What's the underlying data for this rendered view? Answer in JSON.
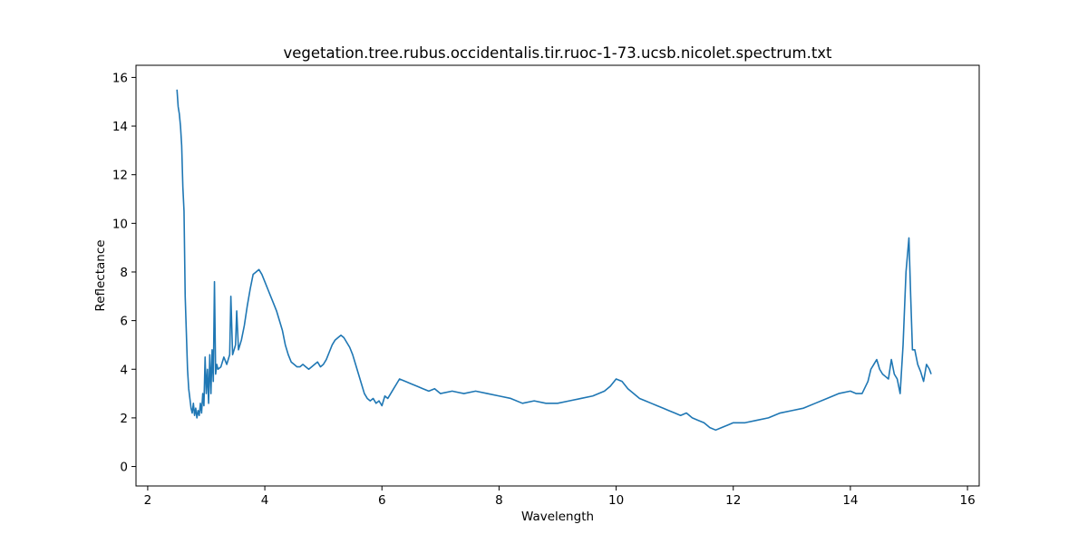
{
  "chart_data": {
    "type": "line",
    "title": "vegetation.tree.rubus.occidentalis.tir.ruoc-1-73.ucsb.nicolet.spectrum.txt",
    "xlabel": "Wavelength",
    "ylabel": "Reflectance",
    "xlim": [
      1.8,
      16.2
    ],
    "ylim": [
      -0.8,
      16.5
    ],
    "xticks": [
      2,
      4,
      6,
      8,
      10,
      12,
      14,
      16
    ],
    "yticks": [
      0,
      2,
      4,
      6,
      8,
      10,
      12,
      14,
      16
    ],
    "grid": false,
    "line_color": "#1f77b4",
    "series": [
      {
        "x": [
          2.5,
          2.52,
          2.54,
          2.56,
          2.58,
          2.6,
          2.62,
          2.64,
          2.66,
          2.68,
          2.7,
          2.72,
          2.74,
          2.76,
          2.78,
          2.8,
          2.82,
          2.84,
          2.86,
          2.88,
          2.9,
          2.92,
          2.94,
          2.96,
          2.98,
          3.0,
          3.02,
          3.04,
          3.06,
          3.08,
          3.1,
          3.12,
          3.14,
          3.16,
          3.18,
          3.2,
          3.25,
          3.3,
          3.35,
          3.4,
          3.42,
          3.45,
          3.5,
          3.52,
          3.55,
          3.6,
          3.65,
          3.7,
          3.75,
          3.8,
          3.85,
          3.9,
          3.95,
          4.0,
          4.05,
          4.1,
          4.15,
          4.2,
          4.25,
          4.3,
          4.35,
          4.4,
          4.45,
          4.5,
          4.55,
          4.6,
          4.65,
          4.7,
          4.75,
          4.8,
          4.85,
          4.9,
          4.95,
          5.0,
          5.05,
          5.1,
          5.15,
          5.2,
          5.25,
          5.3,
          5.35,
          5.4,
          5.45,
          5.5,
          5.55,
          5.6,
          5.65,
          5.7,
          5.75,
          5.8,
          5.85,
          5.9,
          5.95,
          6.0,
          6.05,
          6.1,
          6.15,
          6.2,
          6.25,
          6.3,
          6.4,
          6.5,
          6.6,
          6.7,
          6.8,
          6.9,
          7.0,
          7.2,
          7.4,
          7.6,
          7.8,
          8.0,
          8.2,
          8.4,
          8.6,
          8.8,
          9.0,
          9.2,
          9.4,
          9.6,
          9.8,
          9.9,
          10.0,
          10.1,
          10.2,
          10.3,
          10.4,
          10.5,
          10.6,
          10.7,
          10.8,
          10.9,
          11.0,
          11.1,
          11.2,
          11.3,
          11.4,
          11.5,
          11.6,
          11.7,
          11.8,
          11.9,
          12.0,
          12.2,
          12.4,
          12.6,
          12.8,
          13.0,
          13.2,
          13.4,
          13.6,
          13.8,
          14.0,
          14.1,
          14.2,
          14.3,
          14.35,
          14.4,
          14.45,
          14.5,
          14.55,
          14.6,
          14.65,
          14.7,
          14.75,
          14.8,
          14.85,
          14.9,
          14.95,
          15.0,
          15.03,
          15.06,
          15.1,
          15.15,
          15.2,
          15.25,
          15.3,
          15.35,
          15.38
        ],
        "y": [
          15.5,
          14.8,
          14.5,
          14.0,
          13.2,
          11.5,
          10.5,
          7.0,
          5.5,
          4.0,
          3.2,
          2.8,
          2.4,
          2.2,
          2.6,
          2.1,
          2.4,
          2.0,
          2.3,
          2.1,
          2.6,
          2.2,
          3.0,
          2.5,
          4.5,
          3.0,
          4.0,
          2.6,
          4.6,
          3.0,
          4.8,
          3.5,
          7.6,
          3.8,
          4.2,
          4.0,
          4.1,
          4.5,
          4.2,
          4.6,
          7.0,
          4.6,
          5.0,
          6.4,
          4.8,
          5.2,
          5.8,
          6.6,
          7.3,
          7.9,
          8.0,
          8.1,
          7.9,
          7.6,
          7.3,
          7.0,
          6.7,
          6.4,
          6.0,
          5.6,
          5.0,
          4.6,
          4.3,
          4.2,
          4.1,
          4.1,
          4.2,
          4.1,
          4.0,
          4.1,
          4.2,
          4.3,
          4.1,
          4.2,
          4.4,
          4.7,
          5.0,
          5.2,
          5.3,
          5.4,
          5.3,
          5.1,
          4.9,
          4.6,
          4.2,
          3.8,
          3.4,
          3.0,
          2.8,
          2.7,
          2.8,
          2.6,
          2.7,
          2.5,
          2.9,
          2.8,
          3.0,
          3.2,
          3.4,
          3.6,
          3.5,
          3.4,
          3.3,
          3.2,
          3.1,
          3.2,
          3.0,
          3.1,
          3.0,
          3.1,
          3.0,
          2.9,
          2.8,
          2.6,
          2.7,
          2.6,
          2.6,
          2.7,
          2.8,
          2.9,
          3.1,
          3.3,
          3.6,
          3.5,
          3.2,
          3.0,
          2.8,
          2.7,
          2.6,
          2.5,
          2.4,
          2.3,
          2.2,
          2.1,
          2.2,
          2.0,
          1.9,
          1.8,
          1.6,
          1.5,
          1.6,
          1.7,
          1.8,
          1.8,
          1.9,
          2.0,
          2.2,
          2.3,
          2.4,
          2.6,
          2.8,
          3.0,
          3.1,
          3.0,
          3.0,
          3.5,
          4.0,
          4.2,
          4.4,
          4.0,
          3.8,
          3.7,
          3.6,
          4.4,
          3.8,
          3.6,
          3.0,
          5.0,
          8.0,
          9.4,
          7.0,
          4.8,
          4.8,
          4.2,
          3.9,
          3.5,
          4.2,
          4.0,
          3.8
        ]
      }
    ]
  }
}
